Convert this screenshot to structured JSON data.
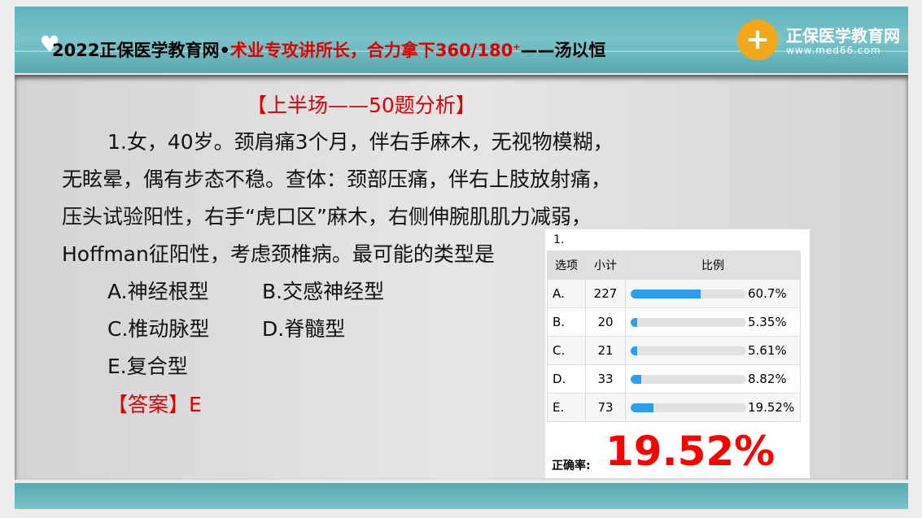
{
  "header": {
    "title_black": "2022正保医学教育网•",
    "title_red": "术业专攻讲所长，合力拿下360/180",
    "title_sup": "+",
    "title_tail": "——汤以恒",
    "logo_name": "正保医学教育网",
    "logo_url": "www.med66.com",
    "icon": "heart-plus-icon"
  },
  "content": {
    "section_title": "【上半场——50题分析】",
    "question_lines": [
      "1.女，40岁。颈肩痛3个月，伴右手麻木，无视物模糊，",
      "无眩晕，偶有步态不稳。查体：颈部压痛，伴右上肢放射痛，",
      "压头试验阳性，右手“虎口区”麻木，右侧伸腕肌肌力减弱，",
      "Hoffman征阳性，考虑颈椎病。最可能的类型是"
    ],
    "options": [
      "A.神经根型",
      "B.交感神经型",
      "C.椎动脉型",
      "D.脊髓型",
      "E.复合型"
    ],
    "answer": "【答案】E"
  },
  "stats": {
    "question_number": "1.",
    "headers": [
      "选项",
      "小计",
      "比例"
    ],
    "rows": [
      {
        "option": "A.",
        "count": "227",
        "percent": "60.7%",
        "fraction": 0.607
      },
      {
        "option": "B.",
        "count": "20",
        "percent": "5.35%",
        "fraction": 0.0535
      },
      {
        "option": "C.",
        "count": "21",
        "percent": "5.61%",
        "fraction": 0.0561
      },
      {
        "option": "D.",
        "count": "33",
        "percent": "8.82%",
        "fraction": 0.0882
      },
      {
        "option": "E.",
        "count": "73",
        "percent": "19.52%",
        "fraction": 0.1952
      }
    ],
    "accuracy_label": "正确率:",
    "accuracy": "19.52%",
    "colors": {
      "bar": "#2c9ef0",
      "accuracy": "#ff0000"
    }
  }
}
